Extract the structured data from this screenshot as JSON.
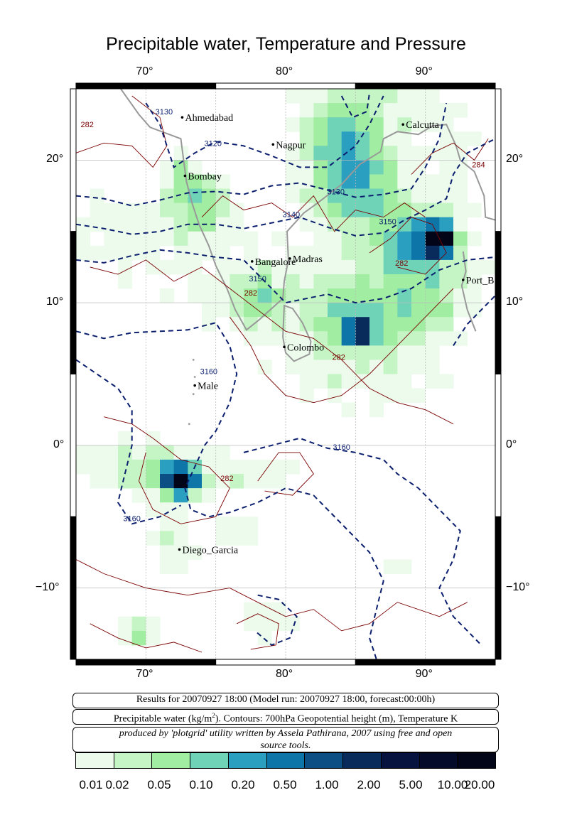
{
  "title": "Precipitable water, Temperature and Pressure",
  "axes": {
    "lon_ticks_top": [
      "70°",
      "80°",
      "90°"
    ],
    "lon_ticks_bottom": [
      "70°",
      "80°",
      "90°"
    ],
    "lat_ticks_left": [
      "20°",
      "10°",
      "0°",
      "−10°"
    ],
    "lat_ticks_right": [
      "20°",
      "10°",
      "0°",
      "−10°"
    ]
  },
  "cities": [
    {
      "name": "Ahmedabad",
      "lon": 72.6,
      "lat": 23.0
    },
    {
      "name": "Calcutta",
      "lon": 88.4,
      "lat": 22.5
    },
    {
      "name": "Nagpur",
      "lon": 79.1,
      "lat": 21.1
    },
    {
      "name": "Bombay",
      "lon": 72.8,
      "lat": 18.9
    },
    {
      "name": "Madras",
      "lon": 80.3,
      "lat": 13.1
    },
    {
      "name": "Bangalore",
      "lon": 77.6,
      "lat": 12.9
    },
    {
      "name": "Port_B",
      "lon": 92.7,
      "lat": 11.6
    },
    {
      "name": "Colombo",
      "lon": 79.9,
      "lat": 6.9
    },
    {
      "name": "Male",
      "lon": 73.5,
      "lat": 4.2
    },
    {
      "name": "Diego_Garcia",
      "lon": 72.4,
      "lat": -7.3
    }
  ],
  "contour_labels": [
    {
      "text": "3130",
      "lon": 71.3,
      "lat": 23.2
    },
    {
      "text": "3120",
      "lon": 74.8,
      "lat": 21.0
    },
    {
      "text": "3130",
      "lon": 83.6,
      "lat": 17.6
    },
    {
      "text": "3140",
      "lon": 80.4,
      "lat": 16.0
    },
    {
      "text": "3150",
      "lon": 87.3,
      "lat": 15.5
    },
    {
      "text": "3150",
      "lon": 78.0,
      "lat": 11.5
    },
    {
      "text": "3160",
      "lon": 74.5,
      "lat": 5.0
    },
    {
      "text": "3160",
      "lon": 84.0,
      "lat": -0.3
    },
    {
      "text": "3160",
      "lon": 69.0,
      "lat": -5.3
    },
    {
      "text": "282",
      "lon": 65.8,
      "lat": 22.3
    },
    {
      "text": "282",
      "lon": 77.5,
      "lat": 10.5
    },
    {
      "text": "282",
      "lon": 88.3,
      "lat": 12.6
    },
    {
      "text": "282",
      "lon": 83.8,
      "lat": 6.0
    },
    {
      "text": "282",
      "lon": 75.8,
      "lat": -2.5
    },
    {
      "text": "284",
      "lon": 93.8,
      "lat": 19.5
    }
  ],
  "info": {
    "line1": "Results for 20070927 18:00 (Model run: 20070927 18:00, forecast:00:00h)",
    "line2_pre": "Precipitable water (kg/m",
    "line2_sup": "2",
    "line2_post": ").  Contours: 700hPa Geopotential height (m), Temperature K",
    "credit1": "produced by 'plotgrid' utility written by Assela Pathirana, 2007 using free and open",
    "credit2": "source tools."
  },
  "colorbar": {
    "labels": [
      "0.01",
      "0.02",
      "0.05",
      "0.10",
      "0.20",
      "0.50",
      "1.00",
      "2.00",
      "5.00",
      "10.00",
      "20.00"
    ],
    "colors": [
      "#ecfbec",
      "#c5f5c5",
      "#a1eda1",
      "#6fd3b8",
      "#2b9fc0",
      "#0e75a8",
      "#0b4f84",
      "#082b5c",
      "#06133f",
      "#040a2a",
      "#020418"
    ]
  },
  "map_colors": {
    "coast": "#999999",
    "geopotential": "#0b1f6e",
    "temperature": "#7a0000",
    "grid": "#bbbbbb"
  }
}
